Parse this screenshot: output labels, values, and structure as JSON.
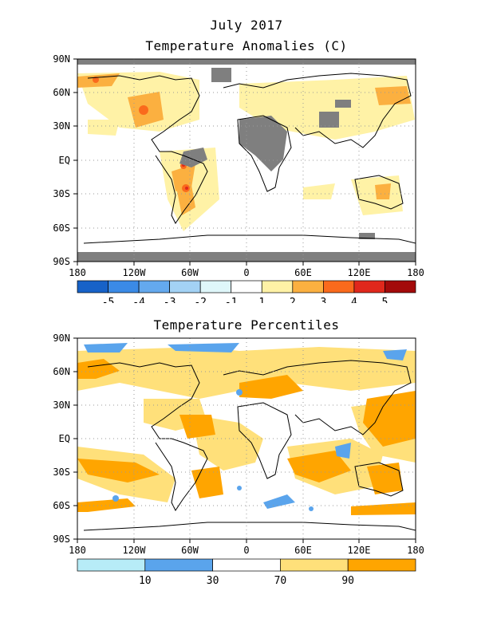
{
  "header": {
    "date": "July 2017"
  },
  "anomaly_map": {
    "title": "Temperature Anomalies (C)",
    "lat_labels": [
      "90N",
      "60N",
      "30N",
      "EQ",
      "30S",
      "60S",
      "90S"
    ],
    "lon_labels": [
      "180",
      "120W",
      "60W",
      "0",
      "60E",
      "120E",
      "180"
    ],
    "legend": {
      "colors": [
        "#1762c8",
        "#3b8ae6",
        "#64a9ee",
        "#a3d2f5",
        "#dff7fa",
        "#ffffff",
        "#fff2a6",
        "#fbb040",
        "#fa6a1c",
        "#e0281c",
        "#a30a0a"
      ],
      "labels": [
        "-5",
        "-4",
        "-3",
        "-2",
        "-1",
        "1",
        "2",
        "3",
        "4",
        "5"
      ]
    }
  },
  "percentile_map": {
    "title": "Temperature Percentiles",
    "lat_labels": [
      "90N",
      "60N",
      "30N",
      "EQ",
      "30S",
      "60S",
      "90S"
    ],
    "lon_labels": [
      "180",
      "120W",
      "60W",
      "0",
      "60E",
      "120E",
      "180"
    ],
    "legend": {
      "colors": [
        "#b7ecf7",
        "#5aa4ec",
        "#ffffff",
        "#ffe07a",
        "#ffa500"
      ],
      "labels": [
        "10",
        "30",
        "70",
        "90"
      ]
    }
  },
  "colors": {
    "missing": "#7f7f7f",
    "coast": "#000000",
    "grid": "#9a9a9a"
  }
}
